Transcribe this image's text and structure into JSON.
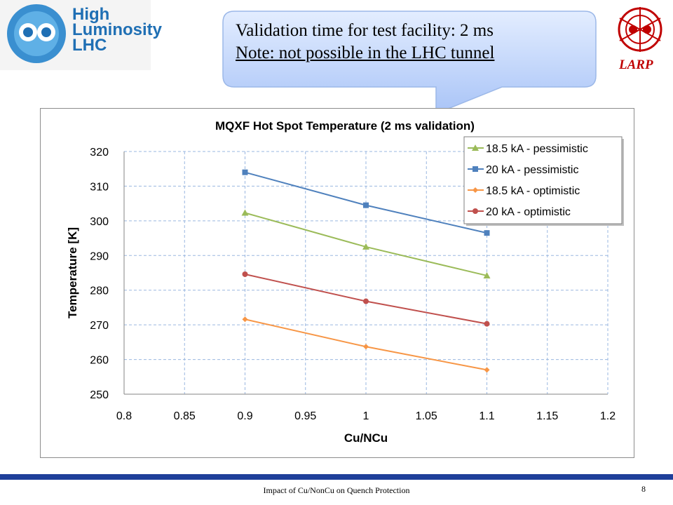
{
  "branding": {
    "hl_lines": [
      "High",
      "Luminosity",
      "LHC"
    ],
    "larp": "LARP"
  },
  "callout": {
    "line1": "Validation time for test facility: 2 ms",
    "line2": "Note: not possible in the LHC tunnel"
  },
  "footer": {
    "text": "Impact of Cu/NonCu on Quench Protection",
    "page": "8"
  },
  "chart_data": {
    "type": "line",
    "title": "MQXF Hot Spot Temperature (2 ms validation)",
    "xlabel": "Cu/NCu",
    "ylabel": "Temperature [K]",
    "xlim": [
      0.8,
      1.2
    ],
    "ylim": [
      250,
      320
    ],
    "xticks": [
      "0.8",
      "0.85",
      "0.9",
      "0.95",
      "1",
      "1.05",
      "1.1",
      "1.15",
      "1.2"
    ],
    "yticks": [
      "250",
      "260",
      "270",
      "280",
      "290",
      "300",
      "310",
      "320"
    ],
    "grid": true,
    "legend_position": "top-right",
    "x": [
      0.9,
      1.0,
      1.1
    ],
    "series": [
      {
        "name": "18.5 kA - pessimistic",
        "values": [
          302.3,
          292.5,
          284.2
        ],
        "color": "#9bbb59",
        "marker": "triangle"
      },
      {
        "name": "20 kA - pessimistic",
        "values": [
          314.0,
          304.5,
          296.5
        ],
        "color": "#4f81bd",
        "marker": "square"
      },
      {
        "name": "18.5 kA - optimistic",
        "values": [
          271.6,
          263.7,
          257.0
        ],
        "color": "#f79646",
        "marker": "diamond"
      },
      {
        "name": "20 kA - optimistic",
        "values": [
          284.6,
          276.8,
          270.3
        ],
        "color": "#c0504d",
        "marker": "circle"
      }
    ]
  }
}
